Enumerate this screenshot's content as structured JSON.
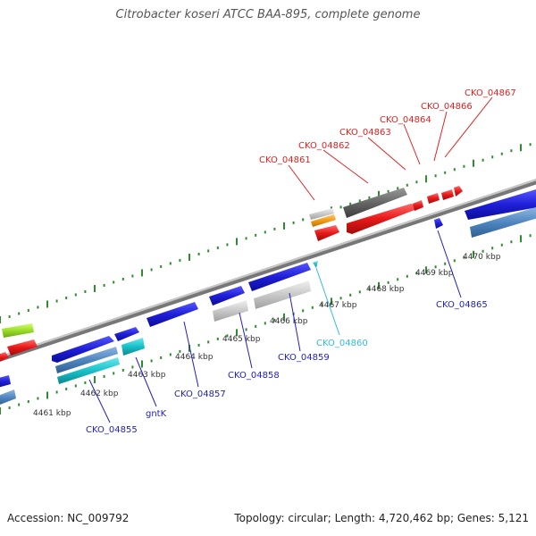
{
  "title": "Citrobacter koseri ATCC BAA-895, complete genome",
  "accession": "Accession: NC_009792",
  "summary": "Topology: circular; Length: 4,720,462 bp; Genes: 5,121",
  "tick_labels": [
    "4461 kbp",
    "4462 kbp",
    "4463 kbp",
    "4464 kbp",
    "4465 kbp",
    "4466 kbp",
    "4467 kbp",
    "4468 kbp",
    "4469 kbp",
    "4470 kbp"
  ],
  "colors": {
    "backbone": "#8a8a8a",
    "tick": "#2e8b2e",
    "label_red": "#dd2222",
    "label_blue": "#2222bb",
    "label_cyan": "#33bbdd",
    "blue": "#1f1fd8",
    "red": "#e81818",
    "cyan": "#18c0c8",
    "steel": "#4f86c0",
    "gray": "#c8c8c8",
    "dark": "#666666",
    "orange": "#f59a10",
    "lime": "#9bdc2a"
  },
  "gene_labels": [
    {
      "text": "CKO_04861",
      "color": "red"
    },
    {
      "text": "CKO_04862",
      "color": "red"
    },
    {
      "text": "CKO_04863",
      "color": "red"
    },
    {
      "text": "CKO_04864",
      "color": "red"
    },
    {
      "text": "CKO_04866",
      "color": "red"
    },
    {
      "text": "CKO_04867",
      "color": "red"
    },
    {
      "text": "CKO_04865",
      "color": "blue"
    },
    {
      "text": "CKO_04860",
      "color": "cyan"
    },
    {
      "text": "CKO_04859",
      "color": "blue"
    },
    {
      "text": "CKO_04858",
      "color": "blue"
    },
    {
      "text": "CKO_04857",
      "color": "blue"
    },
    {
      "text": "gntK",
      "color": "blue"
    },
    {
      "text": "CKO_04855",
      "color": "blue"
    }
  ]
}
